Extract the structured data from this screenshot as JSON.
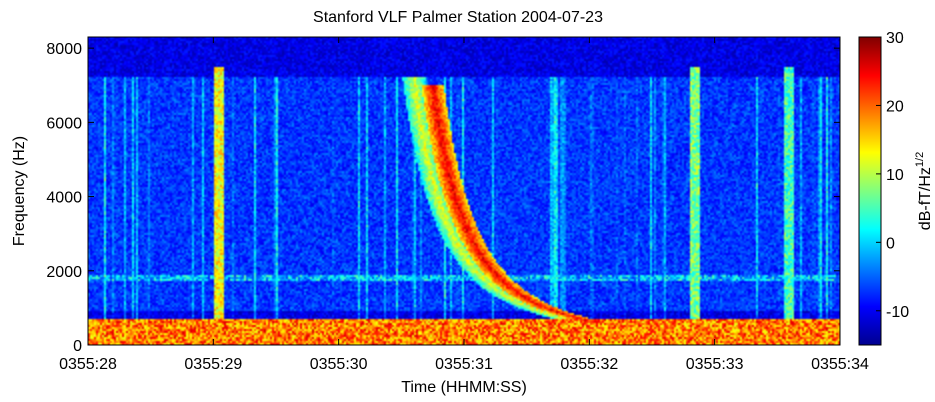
{
  "chart_data": {
    "type": "heatmap",
    "title": "Stanford VLF  Palmer Station  2004-07-23",
    "xlabel": "Time (HHMM:SS)",
    "ylabel": "Frequency (Hz)",
    "x_ticks": [
      "0355:28",
      "0355:29",
      "0355:30",
      "0355:31",
      "0355:32",
      "0355:33",
      "0355:34"
    ],
    "x_range_seconds": [
      28,
      34
    ],
    "y_ticks": [
      0,
      2000,
      4000,
      6000,
      8000
    ],
    "ylim": [
      0,
      8300
    ],
    "colorbar": {
      "label": "dB-fT/Hz",
      "label_superscript": "1/2",
      "ticks": [
        30,
        20,
        10,
        0,
        -10
      ],
      "range": [
        -15,
        30
      ],
      "colormap": "jet"
    },
    "features": [
      {
        "kind": "noise_band",
        "freq_range_hz": [
          0,
          700
        ],
        "level_db": 20
      },
      {
        "kind": "noise_band",
        "freq_range_hz": [
          1700,
          1900
        ],
        "level_db": 0
      },
      {
        "kind": "whistler",
        "start_time_s": 30.75,
        "freq_top_hz": 7000,
        "level_db": 25
      },
      {
        "kind": "whistler",
        "start_time_s": 30.6,
        "freq_top_hz": 7200,
        "level_db": 12
      },
      {
        "kind": "vertical_spike",
        "time_s": 29.05,
        "level_db": 18
      },
      {
        "kind": "vertical_spike",
        "time_s": 32.85,
        "level_db": 12
      },
      {
        "kind": "vertical_spike",
        "time_s": 33.6,
        "level_db": 10
      }
    ]
  }
}
